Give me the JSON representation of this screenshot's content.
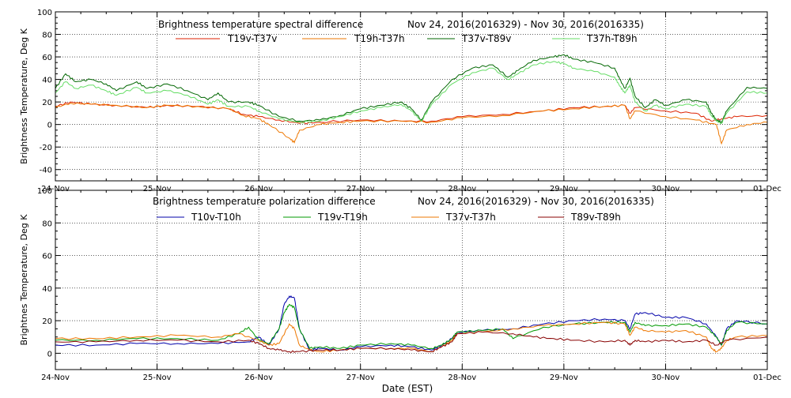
{
  "x_axis_label": "Date (EST)",
  "chart_data": [
    {
      "type": "line",
      "title": "Brightness temperature spectral difference",
      "date_range": "Nov 24, 2016(2016329) - Nov 30, 2016(2016335)",
      "ylabel": "Brightness Temperature, Deg K",
      "xlabel": "",
      "ylim": [
        -50,
        100
      ],
      "xlim": [
        0,
        7
      ],
      "yticks": [
        -40,
        -20,
        0,
        20,
        40,
        60,
        80,
        100
      ],
      "xticks": [
        {
          "x": 0,
          "label": "24-Nov"
        },
        {
          "x": 1,
          "label": "25-Nov"
        },
        {
          "x": 2,
          "label": "26-Nov"
        },
        {
          "x": 3,
          "label": "27-Nov"
        },
        {
          "x": 4,
          "label": "28-Nov"
        },
        {
          "x": 5,
          "label": "29-Nov"
        },
        {
          "x": 6,
          "label": "30-Nov"
        },
        {
          "x": 7,
          "label": "01-Dec"
        }
      ],
      "grid": true,
      "legend": "top",
      "series": [
        {
          "name": "T19v-T37v",
          "color": "#dd2200",
          "x": [
            0,
            0.15,
            0.35,
            0.6,
            0.9,
            1.1,
            1.4,
            1.7,
            1.85,
            2.0,
            2.2,
            2.4,
            2.6,
            3.0,
            3.4,
            3.7,
            4.0,
            4.4,
            4.8,
            5.1,
            5.4,
            5.6,
            5.65,
            5.7,
            6.0,
            6.3,
            6.45,
            6.55,
            6.7,
            7.0
          ],
          "y": [
            16,
            20,
            18,
            17,
            15,
            17,
            16,
            14,
            9,
            7,
            4,
            1,
            2,
            4,
            3,
            3,
            7,
            9,
            12,
            15,
            16,
            17,
            10,
            15,
            12,
            10,
            3,
            5,
            7,
            8
          ]
        },
        {
          "name": "T19h-T37h",
          "color": "#ee7700",
          "x": [
            0,
            0.15,
            0.35,
            0.6,
            0.9,
            1.1,
            1.4,
            1.7,
            1.85,
            2.0,
            2.1,
            2.3,
            2.35,
            2.4,
            2.6,
            2.8,
            3.0,
            3.4,
            3.7,
            4.0,
            4.4,
            4.8,
            5.1,
            5.4,
            5.6,
            5.65,
            5.7,
            6.0,
            6.3,
            6.5,
            6.55,
            6.6,
            6.8,
            7.0
          ],
          "y": [
            15,
            19,
            18,
            17,
            15,
            17,
            16,
            14,
            8,
            5,
            0,
            -12,
            -16,
            -5,
            0,
            2,
            3,
            3,
            2,
            6,
            8,
            12,
            14,
            16,
            17,
            5,
            12,
            7,
            4,
            0,
            -17,
            -5,
            0,
            2
          ]
        },
        {
          "name": "T37v-T89v",
          "color": "#006600",
          "x": [
            0,
            0.1,
            0.2,
            0.35,
            0.5,
            0.6,
            0.8,
            0.9,
            1.1,
            1.3,
            1.5,
            1.6,
            1.7,
            1.9,
            2.0,
            2.2,
            2.4,
            2.6,
            2.8,
            3.0,
            3.2,
            3.4,
            3.5,
            3.6,
            3.7,
            3.9,
            4.1,
            4.3,
            4.45,
            4.55,
            4.7,
            4.9,
            5.0,
            5.1,
            5.3,
            5.5,
            5.55,
            5.6,
            5.65,
            5.7,
            5.8,
            5.9,
            6.0,
            6.2,
            6.4,
            6.45,
            6.5,
            6.55,
            6.6,
            6.8,
            7.0
          ],
          "y": [
            32,
            45,
            38,
            40,
            36,
            30,
            38,
            32,
            36,
            30,
            22,
            28,
            20,
            20,
            17,
            7,
            3,
            4,
            8,
            14,
            17,
            20,
            14,
            4,
            20,
            40,
            50,
            53,
            42,
            48,
            57,
            60,
            62,
            58,
            55,
            50,
            40,
            32,
            41,
            25,
            15,
            22,
            17,
            22,
            20,
            10,
            4,
            2,
            12,
            33,
            32
          ]
        },
        {
          "name": "T37h-T89h",
          "color": "#66dd66",
          "x": [
            0,
            0.1,
            0.2,
            0.35,
            0.5,
            0.6,
            0.8,
            0.9,
            1.1,
            1.3,
            1.5,
            1.6,
            1.7,
            1.9,
            2.0,
            2.2,
            2.4,
            2.6,
            2.8,
            3.0,
            3.2,
            3.4,
            3.5,
            3.6,
            3.7,
            3.9,
            4.1,
            4.3,
            4.45,
            4.55,
            4.7,
            4.9,
            5.0,
            5.1,
            5.3,
            5.5,
            5.55,
            5.6,
            5.65,
            5.7,
            5.8,
            5.9,
            6.0,
            6.2,
            6.4,
            6.45,
            6.5,
            6.55,
            6.6,
            6.8,
            7.0
          ],
          "y": [
            28,
            38,
            32,
            35,
            30,
            26,
            33,
            28,
            30,
            26,
            18,
            22,
            16,
            16,
            12,
            5,
            2,
            3,
            7,
            12,
            15,
            18,
            12,
            3,
            18,
            36,
            46,
            50,
            40,
            45,
            53,
            56,
            54,
            50,
            47,
            42,
            34,
            28,
            35,
            20,
            12,
            17,
            14,
            18,
            16,
            8,
            3,
            1,
            10,
            29,
            28
          ]
        }
      ]
    },
    {
      "type": "line",
      "title": "Brightness temperature polarization difference",
      "date_range": "Nov 24, 2016(2016329) - Nov 30, 2016(2016335)",
      "ylabel": "Brightnes Temperature, Deg K",
      "xlabel": "Date (EST)",
      "ylim": [
        -10,
        100
      ],
      "xlim": [
        0,
        7
      ],
      "yticks": [
        0,
        20,
        40,
        60,
        80,
        100
      ],
      "xticks": [
        {
          "x": 0,
          "label": "24-Nov"
        },
        {
          "x": 1,
          "label": "25-Nov"
        },
        {
          "x": 2,
          "label": "26-Nov"
        },
        {
          "x": 3,
          "label": "27-Nov"
        },
        {
          "x": 4,
          "label": "28-Nov"
        },
        {
          "x": 5,
          "label": "29-Nov"
        },
        {
          "x": 6,
          "label": "30-Nov"
        },
        {
          "x": 7,
          "label": "01-Dec"
        }
      ],
      "grid": true,
      "legend": "top",
      "series": [
        {
          "name": "T10v-T10h",
          "color": "#0000aa",
          "x": [
            0,
            0.4,
            0.8,
            1.2,
            1.6,
            1.9,
            2.0,
            2.1,
            2.2,
            2.25,
            2.3,
            2.35,
            2.4,
            2.5,
            2.6,
            2.8,
            3.0,
            3.3,
            3.5,
            3.7,
            3.8,
            3.9,
            3.95,
            4.2,
            4.5,
            4.8,
            5.1,
            5.4,
            5.6,
            5.65,
            5.7,
            5.8,
            6.0,
            6.2,
            6.4,
            6.5,
            6.55,
            6.6,
            6.7,
            7.0
          ],
          "y": [
            5,
            5,
            6,
            6,
            6,
            7,
            10,
            5,
            15,
            30,
            35,
            34,
            15,
            2,
            3,
            2,
            4,
            5,
            4,
            2,
            5,
            9,
            13,
            14,
            15,
            18,
            20,
            21,
            20,
            15,
            24,
            25,
            22,
            22,
            18,
            10,
            5,
            15,
            20,
            18
          ]
        },
        {
          "name": "T19v-T19h",
          "color": "#009900",
          "x": [
            0,
            0.4,
            0.8,
            1.2,
            1.6,
            1.8,
            1.9,
            2.0,
            2.1,
            2.2,
            2.25,
            2.3,
            2.35,
            2.4,
            2.5,
            2.6,
            2.8,
            3.0,
            3.3,
            3.5,
            3.7,
            3.8,
            3.9,
            3.95,
            4.2,
            4.4,
            4.5,
            4.8,
            5.1,
            5.4,
            5.6,
            5.65,
            5.7,
            5.8,
            6.0,
            6.2,
            6.4,
            6.5,
            6.55,
            6.6,
            6.7,
            7.0
          ],
          "y": [
            8,
            8,
            9,
            9,
            8,
            12,
            16,
            8,
            6,
            15,
            25,
            30,
            28,
            15,
            3,
            4,
            3,
            5,
            6,
            5,
            3,
            5,
            9,
            13,
            14,
            15,
            9,
            16,
            18,
            19,
            19,
            13,
            19,
            17,
            17,
            18,
            16,
            10,
            5,
            14,
            19,
            18
          ]
        },
        {
          "name": "T37v-T37h",
          "color": "#ee7700",
          "x": [
            0,
            0.4,
            0.8,
            1.2,
            1.6,
            1.8,
            2.0,
            2.1,
            2.2,
            2.3,
            2.35,
            2.4,
            2.5,
            2.6,
            2.8,
            3.0,
            3.3,
            3.5,
            3.7,
            3.8,
            3.9,
            3.95,
            4.2,
            4.5,
            4.8,
            5.1,
            5.4,
            5.6,
            5.65,
            5.7,
            5.8,
            6.0,
            6.2,
            6.4,
            6.45,
            6.5,
            6.55,
            6.6,
            6.7,
            7.0
          ],
          "y": [
            9,
            9,
            10,
            11,
            10,
            12,
            8,
            5,
            6,
            18,
            15,
            5,
            2,
            1,
            2,
            3,
            3,
            3,
            1,
            4,
            8,
            12,
            13,
            15,
            17,
            18,
            19,
            18,
            11,
            16,
            14,
            13,
            14,
            10,
            3,
            1,
            3,
            8,
            10,
            11
          ]
        },
        {
          "name": "T89v-T89h",
          "color": "#880000",
          "x": [
            0,
            0.4,
            0.8,
            1.2,
            1.6,
            1.9,
            2.0,
            2.1,
            2.2,
            2.3,
            2.4,
            2.6,
            2.8,
            3.0,
            3.3,
            3.5,
            3.7,
            3.8,
            3.9,
            3.95,
            4.2,
            4.5,
            4.7,
            4.9,
            5.1,
            5.4,
            5.6,
            5.65,
            5.7,
            5.8,
            6.0,
            6.2,
            6.4,
            6.5,
            6.6,
            7.0
          ],
          "y": [
            7,
            7,
            8,
            8,
            7,
            8,
            6,
            3,
            2,
            1,
            1,
            2,
            2,
            3,
            3,
            2,
            1,
            4,
            7,
            12,
            13,
            12,
            10,
            9,
            8,
            7,
            8,
            5,
            8,
            7,
            8,
            7,
            8,
            5,
            8,
            10
          ]
        }
      ]
    }
  ]
}
